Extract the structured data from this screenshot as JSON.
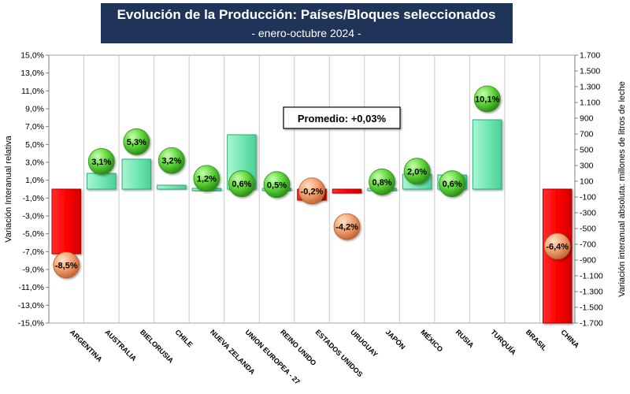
{
  "chart_data": {
    "type": "bar",
    "title": "Evolución de la Producción: Países/Bloques seleccionados",
    "subtitle": "- enero-octubre 2024 -",
    "ylabel": "Variación Interanual relativa",
    "y2label": "Variación interanual absoluta: millones de litros de leche",
    "ylim": [
      -15,
      15
    ],
    "y2lim": [
      -1700,
      1700
    ],
    "yticks": [
      "15,0%",
      "13,0%",
      "11,0%",
      "9,0%",
      "7,0%",
      "5,0%",
      "3,0%",
      "1,0%",
      "-1,0%",
      "-3,0%",
      "-5,0%",
      "-7,0%",
      "-9,0%",
      "-11,0%",
      "-13,0%",
      "-15,0%"
    ],
    "y2ticks": [
      "1.700",
      "1.500",
      "1.300",
      "1.100",
      "900",
      "700",
      "500",
      "300",
      "100",
      "-100",
      "-300",
      "-500",
      "-700",
      "-900",
      "-1.100",
      "-1.300",
      "-1.500",
      "-1.700"
    ],
    "categories": [
      "ARGENTINA",
      "AUSTRALIA",
      "BIELORUSIA",
      "CHILE",
      "NUEVA ZELANDA",
      "UNION EUROPEA - 27",
      "REINO UNIDO",
      "ESTADOS UNIDOS",
      "URUGUAY",
      "JAPÓN",
      "MÉXICO",
      "RUSIA",
      "TURQUÍA",
      "BRASIL",
      "CHINA"
    ],
    "series": [
      {
        "name": "relative",
        "values": [
          -8.5,
          3.1,
          5.3,
          3.2,
          1.2,
          0.6,
          0.5,
          -0.2,
          -4.2,
          0.8,
          2.0,
          0.6,
          10.1,
          null,
          -6.4
        ],
        "labels": [
          "-8,5%",
          "3,1%",
          "5,3%",
          "3,2%",
          "1,2%",
          "0,6%",
          "0,5%",
          "-0,2%",
          "-4,2%",
          "0,8%",
          "2,0%",
          "0,6%",
          "10,1%",
          "",
          "-6,4%"
        ]
      },
      {
        "name": "absolute",
        "values": [
          -820,
          200,
          380,
          50,
          10,
          690,
          10,
          -140,
          -50,
          10,
          190,
          180,
          880,
          null,
          -1700
        ]
      }
    ],
    "annotation": "Promedio: +0,03%",
    "colors": {
      "positive_bar": "#74e8b6",
      "positive_bar_edge": "#2fae78",
      "negative_bar": "#ff0000",
      "negative_bar_edge": "#b00000",
      "positive_bubble": "#5ed63a",
      "negative_bubble": "#f2a070",
      "title_bg": "#1f3458",
      "grid": "#c8c8c8"
    },
    "grid": "vertical",
    "legend": "none"
  }
}
